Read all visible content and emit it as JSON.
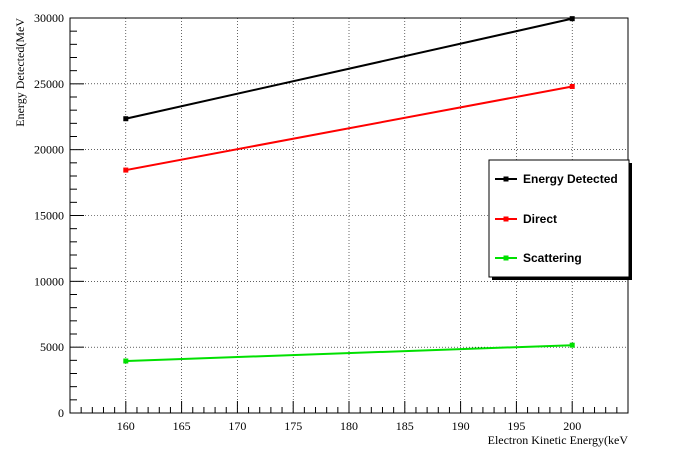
{
  "chart_data": {
    "type": "line",
    "title": "",
    "xlabel": "Electron Kinetic Energy(keV",
    "ylabel": "Energy Detected(MeV",
    "xlim": [
      155,
      205
    ],
    "ylim": [
      0,
      30000
    ],
    "xticks": [
      160,
      165,
      170,
      175,
      180,
      185,
      190,
      195,
      200
    ],
    "yticks": [
      0,
      5000,
      10000,
      15000,
      20000,
      25000,
      30000
    ],
    "grid": true,
    "legend_position": "right",
    "series": [
      {
        "name": "Energy Detected",
        "color": "#000000",
        "x": [
          160,
          200
        ],
        "y": [
          22350,
          29950
        ]
      },
      {
        "name": "Direct",
        "color": "#ff0000",
        "x": [
          160,
          200
        ],
        "y": [
          18450,
          24800
        ]
      },
      {
        "name": "Scattering",
        "color": "#00e000",
        "x": [
          160,
          200
        ],
        "y": [
          3950,
          5150
        ]
      }
    ]
  }
}
